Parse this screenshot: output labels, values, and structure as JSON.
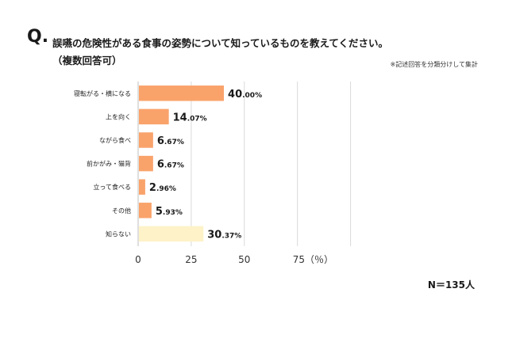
{
  "question": {
    "mark": "Q.",
    "line1": "誤嚥の危険性がある食事の姿勢について知っているものを教えてください。",
    "line2": "（複数回答可）"
  },
  "note": "※記述回答を分類分けして集計",
  "sample_size": "N＝135人",
  "axis": {
    "ticks": [
      "0",
      "25",
      "50",
      "75（％）"
    ]
  },
  "colors": {
    "primary_bar": "#f9a36b",
    "other_bar": "#fdf2c8",
    "grid": "#d9d9d9",
    "axis": "#bfbfbf"
  },
  "chart_data": {
    "type": "bar",
    "orientation": "horizontal",
    "categories": [
      "寝転がる・横になる",
      "上を向く",
      "ながら食べ",
      "前かがみ・猫背",
      "立って食べる",
      "その他",
      "知らない"
    ],
    "values": [
      40.0,
      14.07,
      6.67,
      6.67,
      2.96,
      5.93,
      30.37
    ],
    "value_labels": [
      {
        "num": "40.00",
        "unit": "%"
      },
      {
        "num": "14.07",
        "unit": "%"
      },
      {
        "num": "6.67",
        "unit": "%"
      },
      {
        "num": "6.67",
        "unit": "%"
      },
      {
        "num": "2.96",
        "unit": "%"
      },
      {
        "num": "5.93",
        "unit": "%"
      },
      {
        "num": "30.37",
        "unit": "%"
      }
    ],
    "xlim": [
      0,
      100
    ],
    "grid": true
  }
}
